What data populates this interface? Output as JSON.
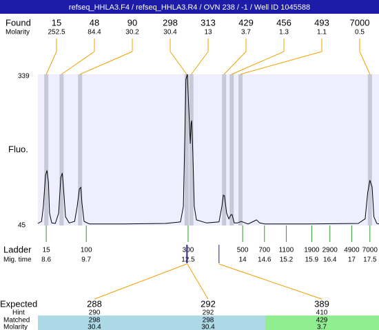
{
  "header": {
    "title": "refseq_HHLA3.F4 / refseq_HHLA3.R4 / OVN 238 / -1 / Well ID 1045588"
  },
  "chart_data": {
    "type": "line",
    "y_axis_label": "Fluo.",
    "color": "#000000",
    "x": [
      8.37,
      8.47,
      8.52,
      8.58,
      8.62,
      8.66,
      8.69,
      8.75,
      8.85,
      8.94,
      9.0,
      9.04,
      9.07,
      9.13,
      9.23,
      9.38,
      9.45,
      9.51,
      9.55,
      9.58,
      9.64,
      9.79,
      10.74,
      11.88,
      12.29,
      12.37,
      12.41,
      12.44,
      12.48,
      12.52,
      12.56,
      12.58,
      12.6,
      12.63,
      12.67,
      12.73,
      13.01,
      13.35,
      13.43,
      13.47,
      13.5,
      13.56,
      13.62,
      13.68,
      13.71,
      13.77,
      13.86,
      13.96,
      14.15,
      14.3,
      14.38,
      14.47,
      14.62,
      15.85,
      17.18,
      17.37,
      17.44,
      17.5,
      17.56,
      17.61,
      17.69,
      17.75
    ],
    "values": [
      49,
      53,
      82,
      143,
      152,
      129,
      69,
      50,
      49,
      69,
      138,
      147,
      123,
      62,
      50,
      53,
      82,
      116,
      119,
      89,
      53,
      48,
      48,
      49,
      52,
      82,
      216,
      329,
      339,
      271,
      204,
      242,
      249,
      189,
      82,
      56,
      50,
      52,
      82,
      104,
      103,
      69,
      58,
      66,
      66,
      50,
      50,
      53,
      48,
      53,
      56,
      50,
      48,
      48,
      49,
      58,
      109,
      133,
      120,
      62,
      49,
      48
    ],
    "xlim": [
      8.37,
      17.75
    ],
    "ylim": [
      45,
      339
    ],
    "yticks": [
      45,
      339
    ]
  },
  "found": {
    "label": "Found",
    "molarity_label": "Molarity",
    "peaks": [
      {
        "size": 15,
        "molarity": 252.5,
        "mig_time": 8.6
      },
      {
        "size": 48,
        "molarity": 84.4,
        "mig_time": 9.02
      },
      {
        "size": 90,
        "molarity": 30.2,
        "mig_time": 9.53
      },
      {
        "size": 298,
        "molarity": 30.4,
        "mig_time": 12.46
      },
      {
        "size": 313,
        "molarity": 13,
        "mig_time": 12.59
      },
      {
        "size": 429,
        "molarity": 3.7,
        "mig_time": 13.49
      },
      {
        "size": 456,
        "molarity": 1.3,
        "mig_time": 13.7
      },
      {
        "size": 493,
        "molarity": 1.1,
        "mig_time": 13.94
      },
      {
        "size": 7000,
        "molarity": 0.5,
        "mig_time": 17.5
      }
    ]
  },
  "ladder": {
    "label": "Ladder",
    "mig_time_label": "Mig. time",
    "sizes": [
      15,
      100,
      300,
      500,
      700,
      1100,
      1900,
      2900,
      4900,
      7000
    ],
    "mig_times": [
      8.6,
      9.7,
      12.5,
      14,
      14.6,
      15.2,
      15.9,
      16.4,
      17,
      17.5
    ]
  },
  "expected": {
    "labels": {
      "expected": "Expected",
      "hint": "Hint",
      "matched": "Matched",
      "molarity": "Molarity"
    },
    "columns": [
      {
        "expected": 288,
        "hint": 290,
        "matched": 298,
        "molarity": 30.4,
        "mig_time": 12.46,
        "color": "#add8e6"
      },
      {
        "expected": 292,
        "hint": 292,
        "matched": 298,
        "molarity": 30.4,
        "mig_time": 12.48,
        "color": "#add8e6"
      },
      {
        "expected": 389,
        "hint": 410,
        "matched": 429,
        "molarity": 3.7,
        "mig_time": 13.35,
        "color": "#90ee90"
      }
    ]
  }
}
